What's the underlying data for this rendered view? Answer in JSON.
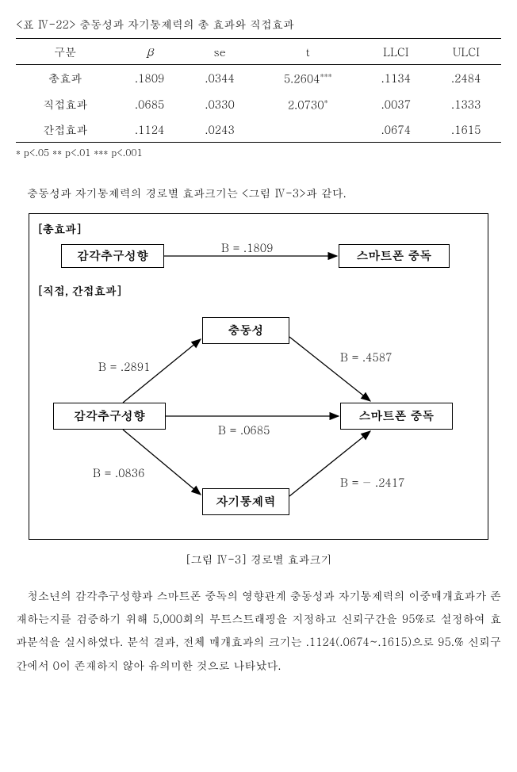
{
  "table": {
    "title": "<표 Ⅳ-22> 충동성과 자기통제력의 총 효과와 직접효과",
    "headers": [
      "구분",
      "β",
      "se",
      "t",
      "LLCI",
      "ULCI"
    ],
    "rows": [
      {
        "label": "총효과",
        "beta": ".1809",
        "se": ".0344",
        "t": "5.2604",
        "stars": "***",
        "llci": ".1134",
        "ulci": ".2484"
      },
      {
        "label": "직접효과",
        "beta": ".0685",
        "se": ".0330",
        "t": "2.0730",
        "stars": "*",
        "llci": ".0037",
        "ulci": ".1333"
      },
      {
        "label": "간접효과",
        "beta": ".1124",
        "se": ".0243",
        "t": "",
        "stars": "",
        "llci": ".0674",
        "ulci": ".1615"
      }
    ],
    "footnote": "* p<.05   ** p<.01   *** p<.001"
  },
  "intro_text": "충동성과 자기통제력의 경로별 효과크기는 <그림 Ⅳ-3>과 같다.",
  "diagram": {
    "section1_label": "[총효과]",
    "section2_label": "[직접, 간접효과]",
    "nodes": {
      "n1": "감각추구성향",
      "n2": "스마트폰 중독",
      "n3": "충동성",
      "n4": "감각추구성향",
      "n5": "스마트폰 중독",
      "n6": "자기통제력"
    },
    "edges": {
      "e1": "B  =  .1809",
      "e2": "B = .2891",
      "e3": "B = .4587",
      "e4": "B  =  .0685",
      "e5": "B = .0836",
      "e6": "B = − .2417"
    },
    "caption": "[그림 Ⅳ-3] 경로별 효과크기"
  },
  "body_text": "청소년의 감각추구성향과 스마트폰 중독의 영향관계 충동성과 자기통제력의 이중매개효과가 존재하는지를 검증하기 위해 5,000회의 부트스트래핑을 지정하고 신뢰구간을 95%로 설정하여 효과분석을 실시하였다. 분석 결과, 전체 매개효과의 크기는 .1124(.0674~.1615)으로 95.% 신뢰구간에서 0이 존재하지 않아 유의미한 것으로 나타났다.",
  "styling": {
    "background": "#ffffff",
    "text_color": "#000000",
    "border_color": "#000000",
    "font_body": 14,
    "font_footnote": 12,
    "line_height": 2.1,
    "node_border_width": 1.5,
    "arrow_stroke": "#000000",
    "arrow_width": 1.3
  }
}
